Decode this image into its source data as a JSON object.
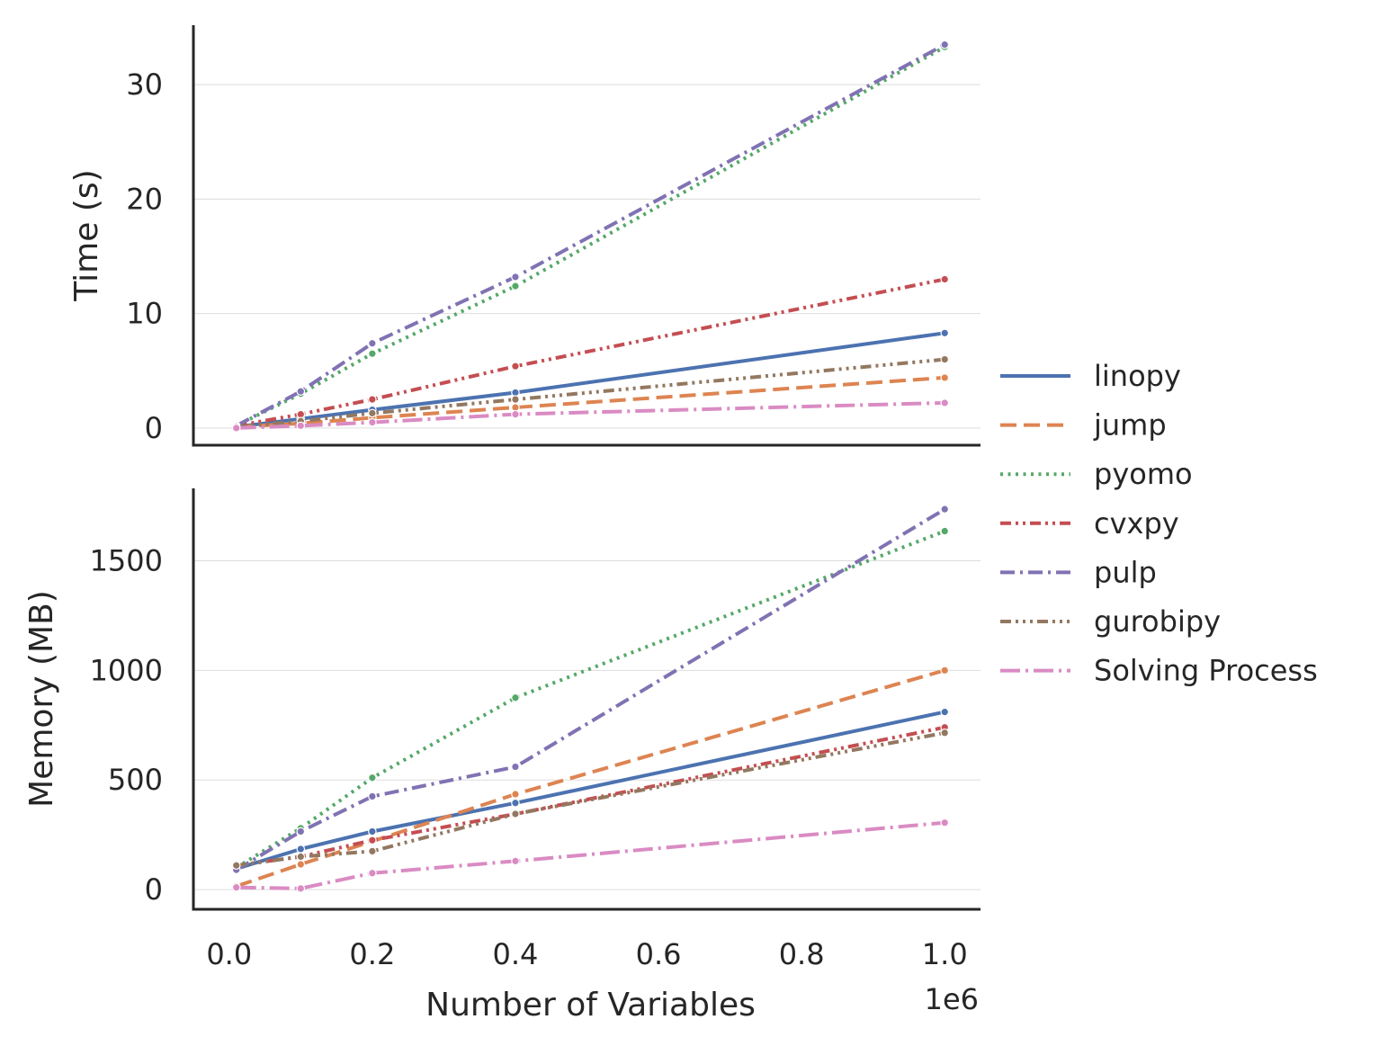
{
  "chart_data": {
    "type": "line",
    "x_axis": {
      "label": "Number of Variables",
      "multiplier_label": "1e6",
      "range": [
        -50000,
        1050000
      ],
      "ticks": [
        0,
        200000,
        400000,
        600000,
        800000,
        1000000
      ],
      "tick_labels": [
        "0.0",
        "0.2",
        "0.4",
        "0.6",
        "0.8",
        "1.0"
      ]
    },
    "x": [
      10000,
      100000,
      200000,
      400000,
      1000000
    ],
    "panels": [
      {
        "name": "time",
        "ylabel": "Time (s)",
        "ylim": [
          -1.5,
          35.2
        ],
        "yticks": [
          0,
          10,
          20,
          30
        ],
        "ytick_labels": [
          "0",
          "10",
          "20",
          "30"
        ],
        "grid": true,
        "series": [
          {
            "name": "linopy",
            "values": [
              0.1,
              0.8,
              1.6,
              3.1,
              8.3
            ]
          },
          {
            "name": "jump",
            "values": [
              0.1,
              0.4,
              0.9,
              1.8,
              4.4
            ]
          },
          {
            "name": "pyomo",
            "values": [
              0.2,
              3.0,
              6.5,
              12.4,
              33.3
            ]
          },
          {
            "name": "cvxpy",
            "values": [
              0.2,
              1.2,
              2.5,
              5.4,
              13.0
            ]
          },
          {
            "name": "pulp",
            "values": [
              0.2,
              3.2,
              7.4,
              13.2,
              33.5
            ]
          },
          {
            "name": "gurobipy",
            "values": [
              0.1,
              0.6,
              1.3,
              2.5,
              6.0
            ]
          },
          {
            "name": "Solving Process",
            "values": [
              0.0,
              0.2,
              0.5,
              1.2,
              2.2
            ]
          }
        ]
      },
      {
        "name": "memory",
        "ylabel": "Memory (MB)",
        "ylim": [
          -90,
          1830
        ],
        "yticks": [
          0,
          500,
          1000,
          1500
        ],
        "ytick_labels": [
          "0",
          "500",
          "1000",
          "1500"
        ],
        "grid": true,
        "series": [
          {
            "name": "linopy",
            "values": [
              95,
              185,
              265,
              395,
              810
            ]
          },
          {
            "name": "jump",
            "values": [
              15,
              115,
              220,
              435,
              1000
            ]
          },
          {
            "name": "pyomo",
            "values": [
              100,
              280,
              510,
              875,
              1635
            ]
          },
          {
            "name": "cvxpy",
            "values": [
              110,
              150,
              225,
              345,
              740
            ]
          },
          {
            "name": "pulp",
            "values": [
              90,
              265,
              425,
              560,
              1735
            ]
          },
          {
            "name": "gurobipy",
            "values": [
              110,
              150,
              175,
              345,
              715
            ]
          },
          {
            "name": "Solving Process",
            "values": [
              10,
              5,
              75,
              130,
              305
            ]
          }
        ]
      }
    ],
    "legend": {
      "placement": "center-right outside",
      "entries": [
        "linopy",
        "jump",
        "pyomo",
        "cvxpy",
        "pulp",
        "gurobipy",
        "Solving Process"
      ]
    },
    "series_styles": [
      {
        "name": "linopy",
        "color": "#4C72B0",
        "dash": "solid"
      },
      {
        "name": "jump",
        "color": "#DD8452",
        "dash": "dashed"
      },
      {
        "name": "pyomo",
        "color": "#55A868",
        "dash": "dotted"
      },
      {
        "name": "cvxpy",
        "color": "#C44E52",
        "dash": "dash-dot-dot"
      },
      {
        "name": "pulp",
        "color": "#8172B3",
        "dash": "dash-dot"
      },
      {
        "name": "gurobipy",
        "color": "#937860",
        "dash": "dash-dot-dot-dot"
      },
      {
        "name": "Solving Process",
        "color": "#DA8BC3",
        "dash": "long-dash-dot"
      }
    ]
  }
}
